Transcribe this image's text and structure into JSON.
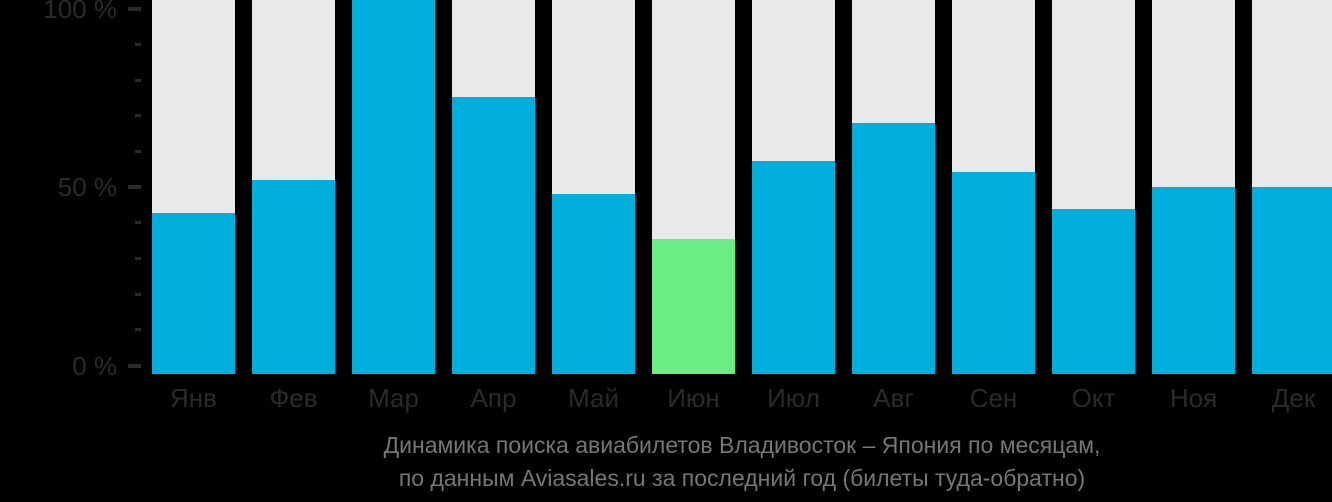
{
  "chart_data": {
    "type": "bar",
    "title": "Динамика поиска авиабилетов Владивосток – Япония по месяцам,",
    "subtitle": "по данным Aviasales.ru за последний год (билеты туда-обратно)",
    "categories": [
      "Янв",
      "Фев",
      "Мар",
      "Апр",
      "Май",
      "Июн",
      "Июл",
      "Авг",
      "Сен",
      "Окт",
      "Ноя",
      "Дек"
    ],
    "values": [
      43,
      52,
      100,
      74,
      48,
      36,
      57,
      67,
      54,
      44,
      50,
      50
    ],
    "unit": "%",
    "highlight": {
      "index": 5,
      "category": "Июн"
    },
    "xlabel": "",
    "ylabel": "",
    "ylim": [
      0,
      100
    ],
    "y_axis": {
      "major_ticks": [
        {
          "value": 100,
          "label": "100 %"
        },
        {
          "value": 50,
          "label": "50 %"
        },
        {
          "value": 0,
          "label": "0 %"
        }
      ],
      "minor_ticks": [
        90,
        80,
        70,
        60,
        40,
        30,
        20,
        10
      ]
    },
    "grid": "off",
    "legend": "none",
    "colors": {
      "bar": "#00AEDC",
      "bar_highlight": "#6CEC85",
      "column_background": "#E9E9E9",
      "page_background": "#000000",
      "axis_text": "#2A2A2E",
      "caption_text": "#76767A"
    }
  }
}
